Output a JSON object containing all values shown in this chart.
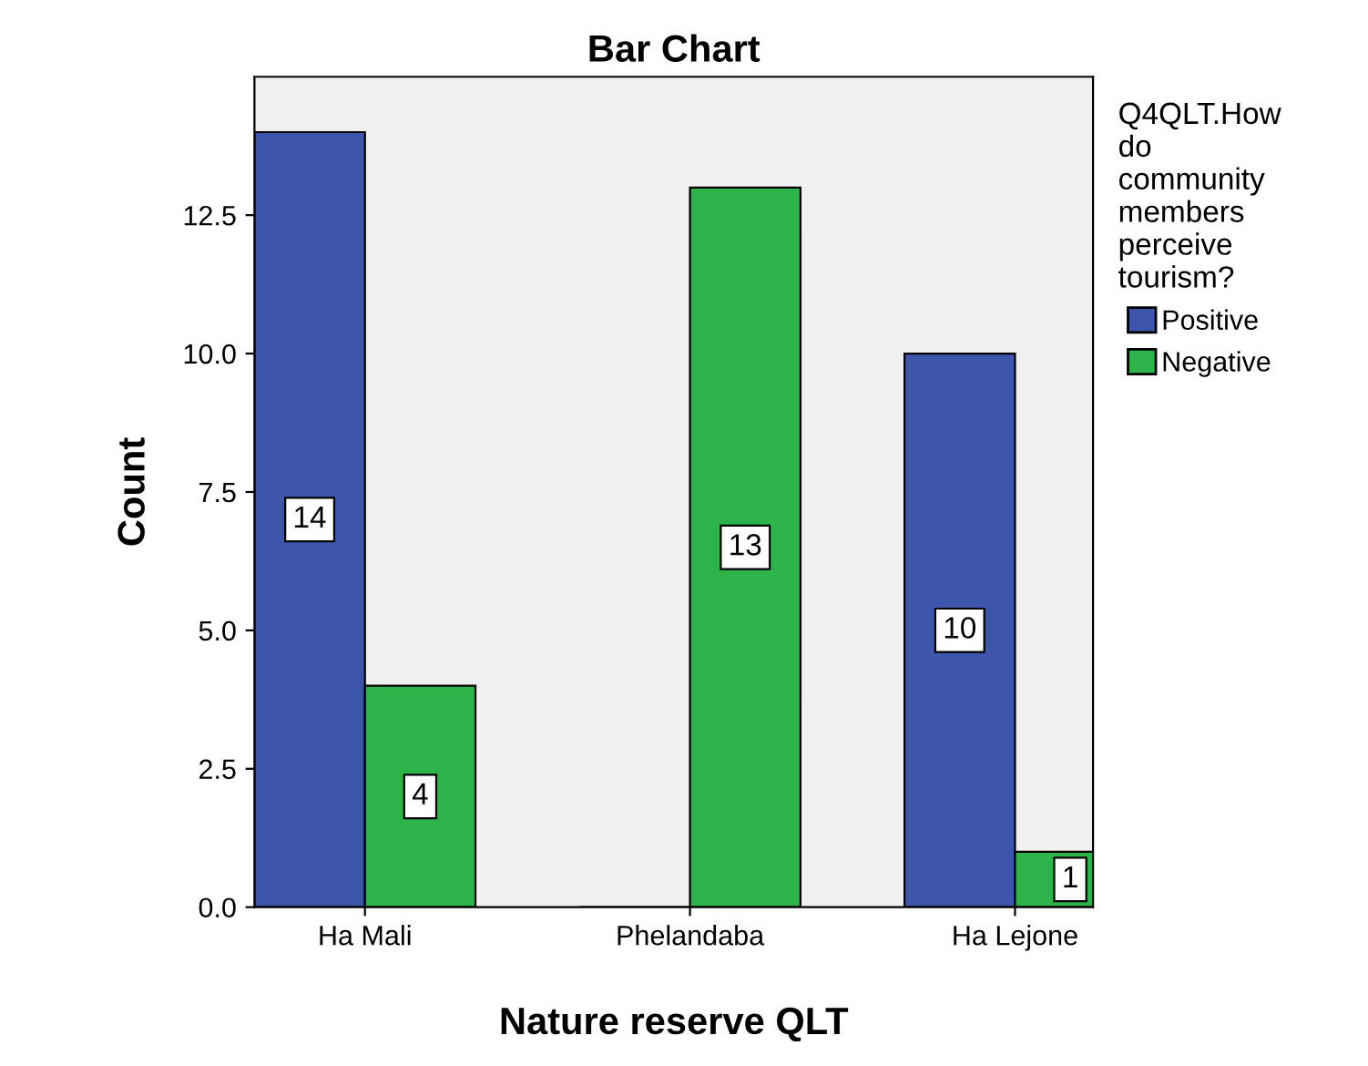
{
  "chart_data": {
    "type": "bar",
    "title": "Bar Chart",
    "xlabel": "Nature reserve QLT",
    "ylabel": "Count",
    "legend_title": "Q4QLT.How do community members perceive tourism?",
    "categories": [
      "Ha Mali",
      "Phelandaba",
      "Ha Lejone"
    ],
    "series": [
      {
        "name": "Positive",
        "color": "#3d55ab",
        "values": [
          14,
          0,
          10
        ],
        "value_labels": [
          "14",
          null,
          "10"
        ]
      },
      {
        "name": "Negative",
        "color": "#2eb34a",
        "values": [
          4,
          13,
          1
        ],
        "value_labels": [
          "4",
          "13",
          "1"
        ]
      }
    ],
    "ylim": [
      0,
      15
    ],
    "yticks": [
      {
        "value": 0,
        "label": "0.0"
      },
      {
        "value": 2.5,
        "label": "2.5"
      },
      {
        "value": 5,
        "label": "5.0"
      },
      {
        "value": 7.5,
        "label": "7.5"
      },
      {
        "value": 10,
        "label": "10.0"
      },
      {
        "value": 12.5,
        "label": "12.5"
      }
    ],
    "grid": false,
    "legend": "right"
  }
}
